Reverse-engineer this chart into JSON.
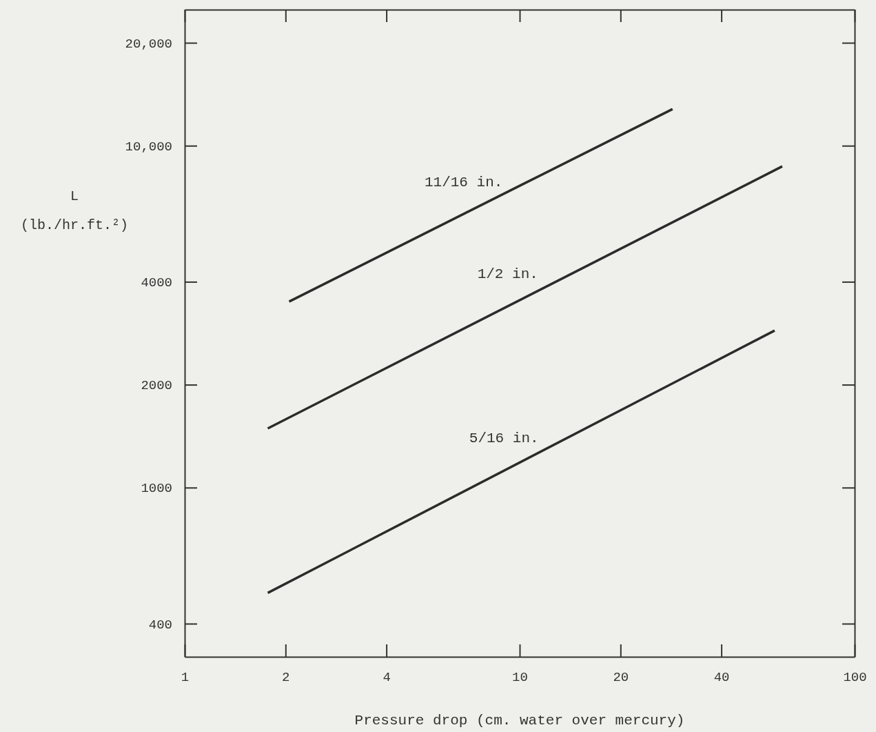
{
  "chart_data": {
    "type": "line",
    "xlabel": "Pressure drop (cm. water over mercury)",
    "ylabel": "L\n(lb./hr.ft.²)",
    "log": "xy",
    "grid": false,
    "marker": "none",
    "line_style": "solid",
    "xlim": [
      1,
      100
    ],
    "xticks": [
      1,
      2,
      4,
      10,
      20,
      40,
      100
    ],
    "ylim": [
      320,
      25000
    ],
    "yticks": [
      {
        "value": 20000,
        "label": "20,000"
      },
      {
        "value": 10000,
        "label": "10,000"
      },
      4000,
      2000,
      1000,
      400
    ],
    "series": [
      {
        "name": "11/16 in.",
        "color": "#2b2b2b",
        "x": [
          2.05,
          28.6
        ],
        "values": [
          3500,
          12800
        ]
      },
      {
        "name": "1/2 in.",
        "color": "#2b2b2b",
        "x": [
          1.77,
          60.8
        ],
        "values": [
          1490,
          8700
        ]
      },
      {
        "name": "5/16 in.",
        "color": "#2b2b2b",
        "x": [
          1.77,
          57.7
        ],
        "values": [
          492,
          2880
        ]
      }
    ]
  }
}
